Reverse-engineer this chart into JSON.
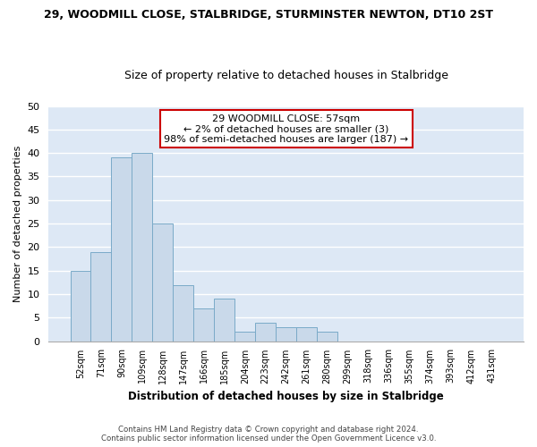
{
  "title": "29, WOODMILL CLOSE, STALBRIDGE, STURMINSTER NEWTON, DT10 2ST",
  "subtitle": "Size of property relative to detached houses in Stalbridge",
  "xlabel": "Distribution of detached houses by size in Stalbridge",
  "ylabel": "Number of detached properties",
  "categories": [
    "52sqm",
    "71sqm",
    "90sqm",
    "109sqm",
    "128sqm",
    "147sqm",
    "166sqm",
    "185sqm",
    "204sqm",
    "223sqm",
    "242sqm",
    "261sqm",
    "280sqm",
    "299sqm",
    "318sqm",
    "336sqm",
    "355sqm",
    "374sqm",
    "393sqm",
    "412sqm",
    "431sqm"
  ],
  "values": [
    15,
    19,
    39,
    40,
    25,
    12,
    7,
    9,
    2,
    4,
    3,
    3,
    2,
    0,
    0,
    0,
    0,
    0,
    0,
    0,
    0
  ],
  "bar_color": "#c9d9ea",
  "bar_edge_color": "#7aaac8",
  "annotation_text": "29 WOODMILL CLOSE: 57sqm\n← 2% of detached houses are smaller (3)\n98% of semi-detached houses are larger (187) →",
  "annotation_box_color": "white",
  "annotation_box_edge_color": "#cc0000",
  "ylim": [
    0,
    50
  ],
  "yticks": [
    0,
    5,
    10,
    15,
    20,
    25,
    30,
    35,
    40,
    45,
    50
  ],
  "background_color": "#dde8f5",
  "grid_color": "white",
  "footer_line1": "Contains HM Land Registry data © Crown copyright and database right 2024.",
  "footer_line2": "Contains public sector information licensed under the Open Government Licence v3.0."
}
